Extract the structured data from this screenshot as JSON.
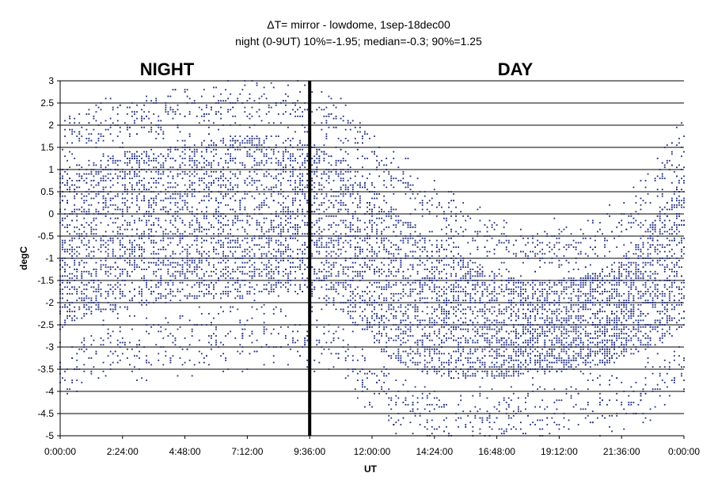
{
  "chart_data": {
    "type": "scatter",
    "title": "ΔT= mirror - lowdome, 1sep-18dec00",
    "subtitle": "night (0-9UT) 10%=-1.95; median=-0.3; 90%=1.25",
    "xlabel": "UT",
    "ylabel": "degC",
    "xlim_hours": [
      0,
      24
    ],
    "ylim": [
      -5,
      3
    ],
    "xticks": [
      "0:00:00",
      "2:24:00",
      "4:48:00",
      "7:12:00",
      "9:36:00",
      "12:00:00",
      "14:24:00",
      "16:48:00",
      "19:12:00",
      "21:36:00",
      "0:00:00"
    ],
    "yticks": [
      "3",
      "2.5",
      "2",
      "1.5",
      "1",
      "0.5",
      "0",
      "-0.5",
      "-1",
      "-1.5",
      "-2",
      "-2.5",
      "-3",
      "-3.5",
      "-4",
      "-4.5",
      "-5"
    ],
    "grid": "horizontal",
    "marker_color": "#1c2a7c",
    "divider_hours": 9.6,
    "region_labels": [
      "NIGHT",
      "DAY"
    ],
    "series_envelope_note_free": true,
    "density_profile": [
      {
        "x": 0,
        "p10": -2.6,
        "median": -0.8,
        "p90": 1.0
      },
      {
        "x": 1,
        "p10": -2.3,
        "median": -0.7,
        "p90": 1.2
      },
      {
        "x": 2,
        "p10": -2.2,
        "median": -0.5,
        "p90": 1.4
      },
      {
        "x": 3,
        "p10": -2.1,
        "median": -0.4,
        "p90": 1.4
      },
      {
        "x": 4,
        "p10": -2.0,
        "median": -0.3,
        "p90": 1.5
      },
      {
        "x": 5,
        "p10": -1.9,
        "median": -0.2,
        "p90": 1.6
      },
      {
        "x": 6,
        "p10": -1.9,
        "median": -0.1,
        "p90": 1.7
      },
      {
        "x": 7,
        "p10": -1.9,
        "median": -0.1,
        "p90": 1.8
      },
      {
        "x": 8,
        "p10": -1.8,
        "median": -0.1,
        "p90": 1.8
      },
      {
        "x": 9,
        "p10": -1.8,
        "median": 0.0,
        "p90": 1.7
      },
      {
        "x": 10,
        "p10": -1.9,
        "median": -0.2,
        "p90": 1.5
      },
      {
        "x": 11,
        "p10": -2.3,
        "median": -0.8,
        "p90": 1.2
      },
      {
        "x": 12,
        "p10": -2.9,
        "median": -1.6,
        "p90": 0.7
      },
      {
        "x": 13,
        "p10": -3.4,
        "median": -2.2,
        "p90": 0.1
      },
      {
        "x": 14,
        "p10": -3.6,
        "median": -2.5,
        "p90": -0.4
      },
      {
        "x": 15,
        "p10": -3.7,
        "median": -2.7,
        "p90": -0.8
      },
      {
        "x": 16,
        "p10": -3.7,
        "median": -2.8,
        "p90": -1.1
      },
      {
        "x": 17,
        "p10": -3.7,
        "median": -2.8,
        "p90": -1.4
      },
      {
        "x": 18,
        "p10": -3.6,
        "median": -2.7,
        "p90": -1.5
      },
      {
        "x": 19,
        "p10": -3.6,
        "median": -2.6,
        "p90": -1.5
      },
      {
        "x": 20,
        "p10": -3.5,
        "median": -2.5,
        "p90": -1.4
      },
      {
        "x": 21,
        "p10": -3.4,
        "median": -2.3,
        "p90": -1.2
      },
      {
        "x": 22,
        "p10": -3.2,
        "median": -2.0,
        "p90": -0.8
      },
      {
        "x": 23,
        "p10": -2.9,
        "median": -1.4,
        "p90": 0.0
      },
      {
        "x": 24,
        "p10": -2.6,
        "median": -0.9,
        "p90": 0.9
      }
    ]
  }
}
